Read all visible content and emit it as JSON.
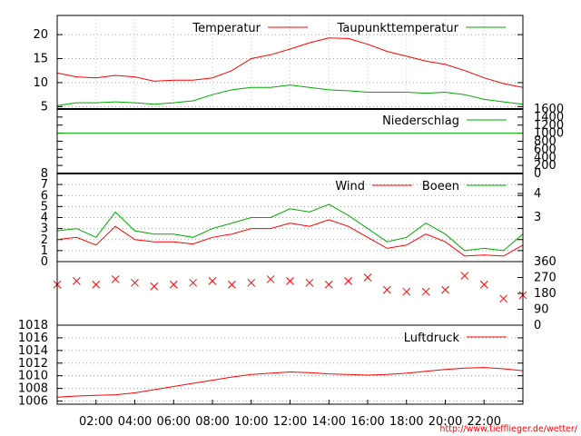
{
  "source_text": "http://www.tiefflieger.de/wetter/",
  "chart_data": [
    {
      "type": "line",
      "panel": "temperature",
      "ylim": [
        4.5,
        24
      ],
      "y_ticks": [
        "5",
        "10",
        "15",
        "20"
      ],
      "x_ticks": [
        "02:00",
        "04:00",
        "06:00",
        "08:00",
        "10:00",
        "12:00",
        "14:00",
        "16:00",
        "18:00",
        "20:00",
        "22:00"
      ],
      "grid": true,
      "legend_position": "top-right",
      "series": [
        {
          "name": "Temperatur",
          "color": "#ff0000",
          "x": [
            0,
            1,
            2,
            3,
            4,
            5,
            6,
            7,
            8,
            9,
            10,
            11,
            12,
            13,
            14,
            15,
            16,
            17,
            18,
            19,
            20,
            21,
            22,
            23,
            24
          ],
          "values": [
            12.0,
            11.2,
            11.0,
            11.5,
            11.2,
            10.3,
            10.5,
            10.5,
            11.0,
            12.5,
            15.0,
            15.8,
            17.0,
            18.3,
            19.3,
            19.2,
            18.0,
            16.5,
            15.5,
            14.5,
            13.8,
            12.5,
            11.0,
            9.8,
            9.0
          ]
        },
        {
          "name": "Taupunkttemperatur",
          "color": "#00aa00",
          "x": [
            0,
            1,
            2,
            3,
            4,
            5,
            6,
            7,
            8,
            9,
            10,
            11,
            12,
            13,
            14,
            15,
            16,
            17,
            18,
            19,
            20,
            21,
            22,
            23,
            24
          ],
          "values": [
            5.2,
            5.8,
            5.8,
            6.0,
            5.8,
            5.5,
            5.8,
            6.2,
            7.5,
            8.5,
            9.0,
            9.0,
            9.5,
            9.0,
            8.5,
            8.3,
            8.0,
            8.0,
            8.0,
            7.8,
            8.0,
            7.5,
            6.5,
            6.0,
            5.5
          ]
        }
      ]
    },
    {
      "type": "line",
      "panel": "precipitation",
      "ylim": [
        0,
        1600
      ],
      "y_ticks": [
        "0",
        "200",
        "400",
        "600",
        "800",
        "1000",
        "1200",
        "1400",
        "1600"
      ],
      "series": [
        {
          "name": "Niederschlag",
          "color": "#00aa00",
          "x": [
            0,
            24
          ],
          "values": [
            1000,
            1000
          ]
        }
      ]
    },
    {
      "type": "line",
      "panel": "wind",
      "ylim": [
        0,
        8
      ],
      "y_ticks": [
        "0",
        "1",
        "2",
        "3",
        "4",
        "5",
        "6",
        "7",
        "8"
      ],
      "y_right_ticks": [
        "3",
        "4"
      ],
      "series": [
        {
          "name": "Wind",
          "color": "#ff0000",
          "x": [
            0,
            1,
            2,
            3,
            4,
            5,
            6,
            7,
            8,
            9,
            10,
            11,
            12,
            13,
            14,
            15,
            16,
            17,
            18,
            19,
            20,
            21,
            22,
            23,
            24
          ],
          "values": [
            2.0,
            2.2,
            1.5,
            3.2,
            2.0,
            1.8,
            1.8,
            1.6,
            2.2,
            2.5,
            3.0,
            3.0,
            3.5,
            3.2,
            3.8,
            3.2,
            2.2,
            1.2,
            1.5,
            2.5,
            1.8,
            0.5,
            0.6,
            0.5,
            1.5
          ]
        },
        {
          "name": "Boeen",
          "color": "#00aa00",
          "x": [
            0,
            1,
            2,
            3,
            4,
            5,
            6,
            7,
            8,
            9,
            10,
            11,
            12,
            13,
            14,
            15,
            16,
            17,
            18,
            19,
            20,
            21,
            22,
            23,
            24
          ],
          "values": [
            2.8,
            3.0,
            2.2,
            4.5,
            2.8,
            2.5,
            2.5,
            2.2,
            3.0,
            3.5,
            4.0,
            4.0,
            4.8,
            4.5,
            5.2,
            4.2,
            3.0,
            1.8,
            2.2,
            3.5,
            2.5,
            1.0,
            1.2,
            1.0,
            2.5
          ]
        }
      ]
    },
    {
      "type": "scatter",
      "panel": "wind-direction",
      "ylim": [
        0,
        360
      ],
      "y_right_ticks": [
        "0",
        "90",
        "180",
        "270",
        "360"
      ],
      "series": [
        {
          "name": "",
          "color": "#ff0000",
          "x": [
            0,
            1,
            2,
            3,
            4,
            5,
            6,
            7,
            8,
            9,
            10,
            11,
            12,
            13,
            14,
            15,
            16,
            17,
            18,
            19,
            20,
            21,
            22,
            23,
            24
          ],
          "values": [
            230,
            250,
            230,
            260,
            240,
            220,
            230,
            240,
            250,
            230,
            240,
            260,
            250,
            240,
            230,
            250,
            270,
            200,
            190,
            190,
            200,
            280,
            230,
            150,
            170
          ]
        }
      ]
    },
    {
      "type": "line",
      "panel": "pressure",
      "ylim": [
        1005.5,
        1018
      ],
      "y_ticks": [
        "1006",
        "1008",
        "1010",
        "1012",
        "1014",
        "1016",
        "1018"
      ],
      "series": [
        {
          "name": "Luftdruck",
          "color": "#ff0000",
          "x": [
            0,
            1,
            2,
            3,
            4,
            5,
            6,
            7,
            8,
            9,
            10,
            11,
            12,
            13,
            14,
            15,
            16,
            17,
            18,
            19,
            20,
            21,
            22,
            23,
            24
          ],
          "values": [
            1006.6,
            1006.8,
            1006.9,
            1007.0,
            1007.3,
            1007.8,
            1008.3,
            1008.8,
            1009.3,
            1009.8,
            1010.2,
            1010.4,
            1010.6,
            1010.5,
            1010.3,
            1010.2,
            1010.1,
            1010.2,
            1010.4,
            1010.7,
            1011.0,
            1011.2,
            1011.3,
            1011.1,
            1010.8
          ]
        }
      ]
    }
  ]
}
